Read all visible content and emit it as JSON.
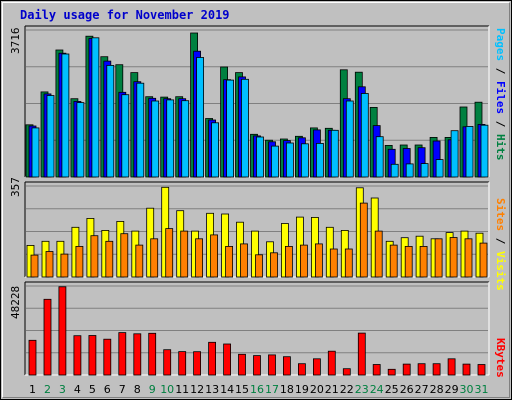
{
  "chart_data": {
    "type": "bar",
    "title": "Daily usage for November 2019",
    "categories": [
      "1",
      "2",
      "3",
      "4",
      "5",
      "6",
      "7",
      "8",
      "9",
      "10",
      "11",
      "12",
      "13",
      "14",
      "15",
      "16",
      "17",
      "18",
      "19",
      "20",
      "21",
      "22",
      "23",
      "24",
      "25",
      "26",
      "27",
      "28",
      "29",
      "30",
      "31"
    ],
    "weekend_categories": [
      "2",
      "3",
      "9",
      "10",
      "16",
      "17",
      "23",
      "24",
      "30",
      "31"
    ],
    "panels": [
      {
        "name": "hits-files-pages",
        "ymax_label": "3716",
        "ylim": [
          0,
          3716
        ],
        "legend": [
          {
            "label": "Hits",
            "color": "#008040"
          },
          {
            "label": "Files",
            "color": "#0000ff"
          },
          {
            "label": "Pages",
            "color": "#00c0ff"
          }
        ],
        "series": [
          {
            "name": "Hits",
            "color": "#008040",
            "values": [
              1320,
              2150,
              3210,
              1980,
              3560,
              3040,
              2840,
              2640,
              2030,
              2020,
              2030,
              3640,
              1480,
              2780,
              2640,
              1080,
              930,
              960,
              1030,
              1240,
              1230,
              2710,
              2650,
              1760,
              800,
              810,
              810,
              1000,
              1000,
              1770,
              1890
            ]
          },
          {
            "name": "Files",
            "color": "#0000ff",
            "values": [
              1290,
              2100,
              3130,
              1910,
              3500,
              2930,
              2140,
              2410,
              1990,
              1980,
              1980,
              3180,
              1440,
              2460,
              2530,
              1040,
              890,
              920,
              990,
              1190,
              1180,
              1980,
              2280,
              1300,
              700,
              720,
              740,
              910,
              940,
              1270,
              1330
            ]
          },
          {
            "name": "Pages",
            "color": "#00c0ff",
            "values": [
              1240,
              2060,
              3110,
              1880,
              3520,
              2820,
              2080,
              2370,
              1920,
              1950,
              1930,
              3020,
              1370,
              2450,
              2470,
              1010,
              780,
              860,
              840,
              850,
              1180,
              1920,
              2110,
              1020,
              320,
              330,
              340,
              440,
              1170,
              1280,
              1310
            ]
          }
        ]
      },
      {
        "name": "visits-sites",
        "ymax_label": "357",
        "ylim": [
          0,
          357
        ],
        "legend": [
          {
            "label": "Visits",
            "color": "#ffff00"
          },
          {
            "label": "Sites",
            "color": "#ff8000"
          }
        ],
        "series": [
          {
            "name": "Visits",
            "color": "#ffff00",
            "values": [
              124,
              140,
              140,
              195,
              230,
              183,
              218,
              180,
              270,
              352,
              260,
              180,
              250,
              247,
              215,
              180,
              138,
              210,
              235,
              234,
              195,
              183,
              350,
              310,
              140,
              154,
              160,
              150,
              174,
              180,
              172
            ]
          },
          {
            "name": "Sites",
            "color": "#ff8000",
            "values": [
              86,
              100,
              90,
              120,
              162,
              140,
              170,
              125,
              150,
              190,
              180,
              150,
              165,
              120,
              130,
              87,
              95,
              120,
              125,
              130,
              110,
              110,
              290,
              180,
              125,
              120,
              120,
              150,
              155,
              150,
              133
            ]
          }
        ]
      },
      {
        "name": "kbytes",
        "ymax_label": "48228",
        "ylim": [
          0,
          48228
        ],
        "legend": [
          {
            "label": "KBytes",
            "color": "#ff0000"
          }
        ],
        "series": [
          {
            "name": "KBytes",
            "color": "#ff0000",
            "values": [
              18800,
              41000,
              47800,
              21300,
              21400,
              19400,
              23000,
              22300,
              22600,
              13700,
              12700,
              12600,
              17700,
              16800,
              11200,
              10500,
              10900,
              9900,
              6100,
              8800,
              12900,
              3400,
              22700,
              5700,
              3100,
              5900,
              6100,
              6100,
              8800,
              5900,
              5700
            ]
          }
        ]
      }
    ]
  }
}
